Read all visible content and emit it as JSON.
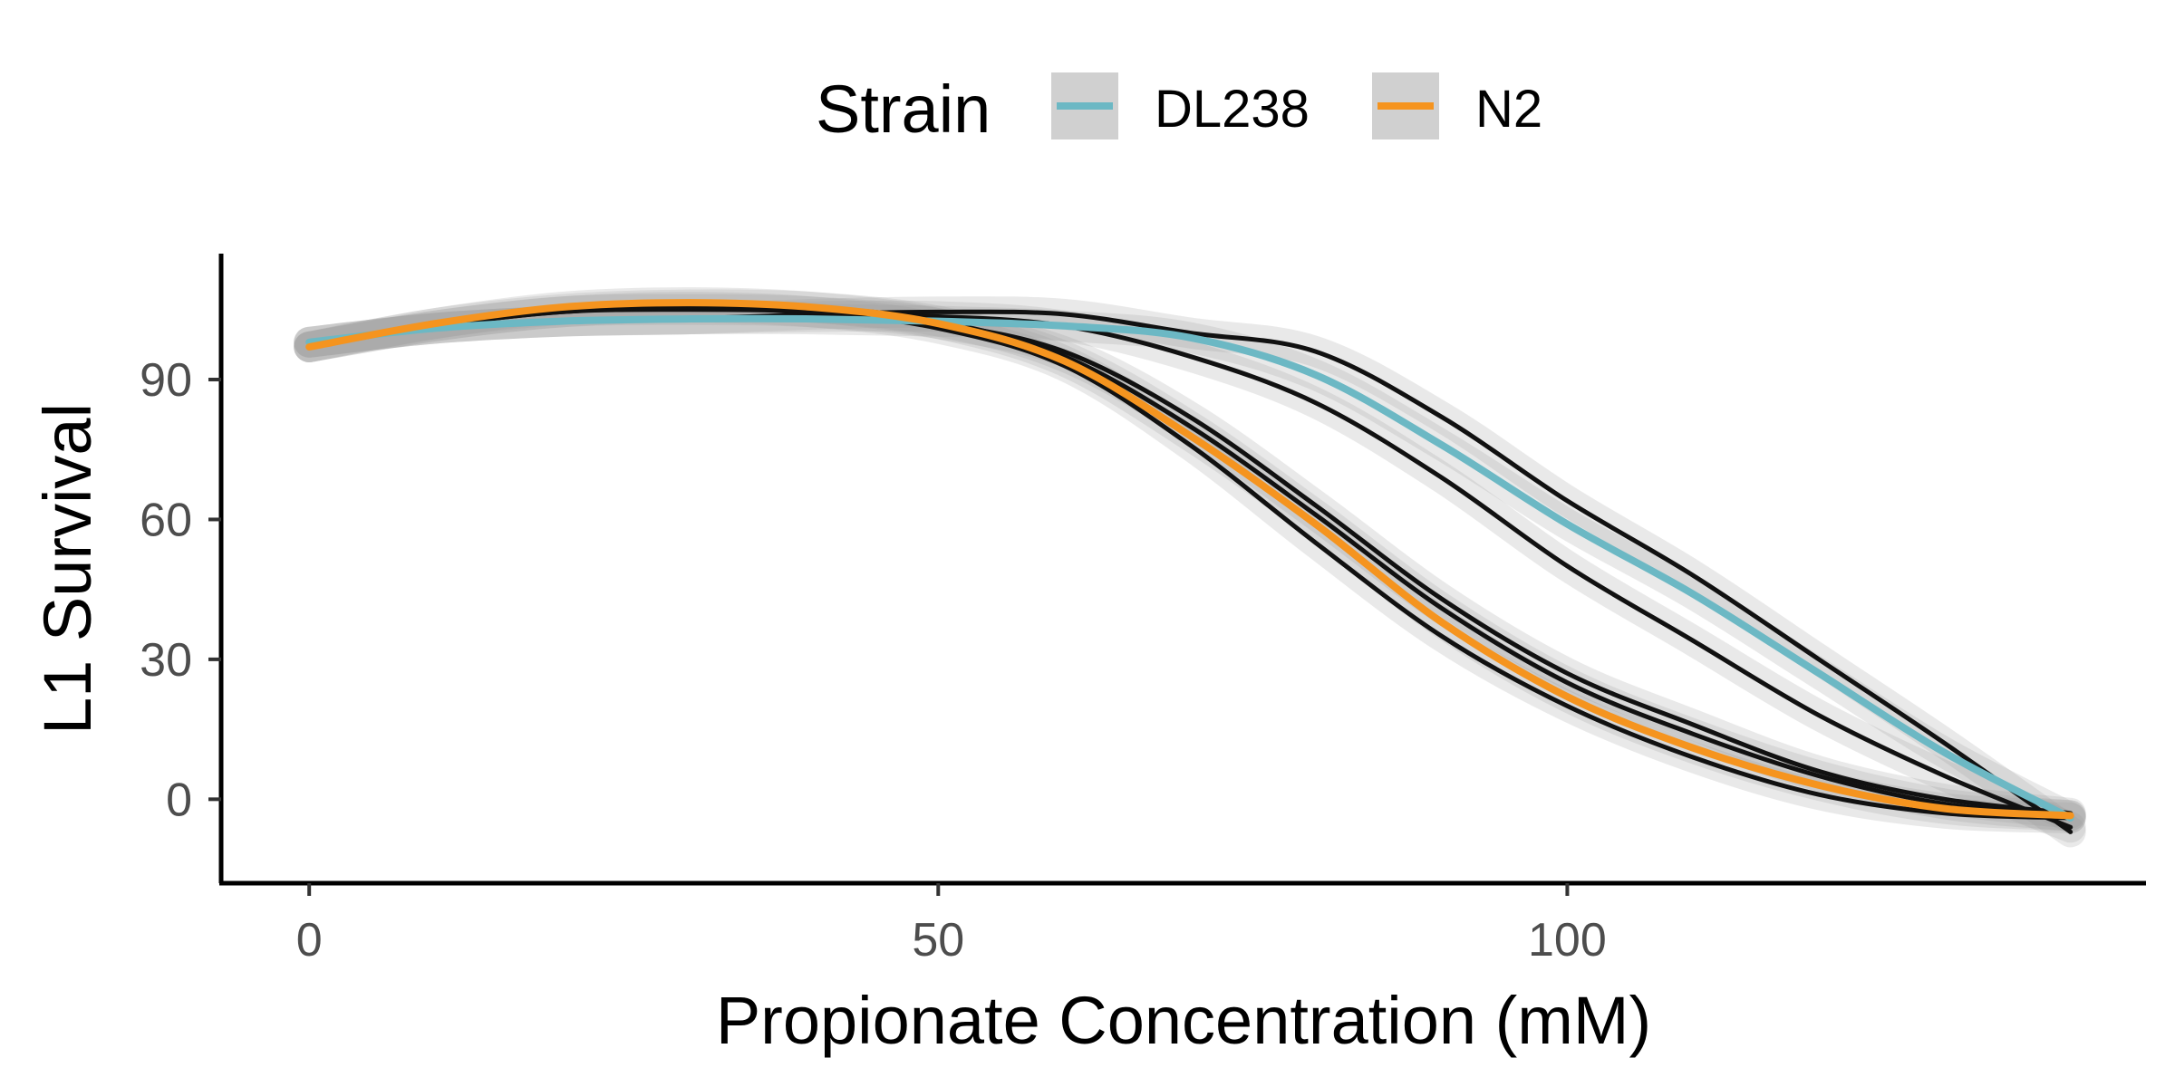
{
  "chart_data": {
    "type": "line",
    "title": "",
    "xlabel": "Propionate Concentration (mM)",
    "ylabel": "L1 Survival",
    "xlim": [
      -7,
      146
    ],
    "ylim": [
      -18,
      117
    ],
    "x_ticks": [
      0,
      50,
      100
    ],
    "y_ticks": [
      0,
      30,
      60,
      90
    ],
    "grid": false,
    "legend": {
      "title": "Strain",
      "position": "top"
    },
    "series": [
      {
        "name": "DL238",
        "color": "#6cb8c4",
        "x": [
          0,
          10,
          20,
          30,
          40,
          50,
          60,
          70,
          80,
          90,
          100,
          110,
          120,
          130,
          140
        ],
        "y": [
          98,
          101,
          102.5,
          103,
          103,
          102.5,
          101.5,
          99,
          91,
          76,
          59,
          44,
          27,
          10,
          -4
        ],
        "replicates": [
          {
            "x": [
              0,
              10,
              20,
              30,
              40,
              50,
              60,
              70,
              80,
              90,
              100,
              110,
              120,
              130,
              140
            ],
            "y": [
              98,
              101,
              102.5,
              103,
              104,
              104.5,
              104,
              100,
              96,
              82,
              64,
              48,
              30,
              12,
              -7
            ]
          },
          {
            "x": [
              0,
              10,
              20,
              30,
              40,
              50,
              60,
              70,
              80,
              90,
              100,
              110,
              120,
              130,
              140
            ],
            "y": [
              98,
              101,
              102.5,
              103,
              103.5,
              103.5,
              101.5,
              95,
              85,
              69,
              50,
              34,
              18,
              5,
              -6
            ]
          }
        ]
      },
      {
        "name": "N2",
        "color": "#f5941f",
        "x": [
          0,
          10,
          20,
          30,
          40,
          50,
          60,
          70,
          80,
          90,
          100,
          110,
          120,
          130,
          140
        ],
        "y": [
          97,
          102,
          105.5,
          106.5,
          105.5,
          102,
          94,
          78,
          59,
          38,
          22,
          11,
          3,
          -2,
          -3.5
        ],
        "replicates": [
          {
            "x": [
              0,
              10,
              20,
              30,
              40,
              50,
              60,
              70,
              80,
              90,
              100,
              110,
              120,
              130,
              140
            ],
            "y": [
              97,
              101.5,
              104.5,
              105,
              104.5,
              102,
              96,
              82,
              63,
              43,
              27,
              16,
              6,
              0,
              -3
            ]
          },
          {
            "x": [
              0,
              10,
              20,
              30,
              40,
              50,
              60,
              70,
              80,
              90,
              100,
              110,
              120,
              130,
              140
            ],
            "y": [
              97,
              101.5,
              104.5,
              105.5,
              104.5,
              101,
              93,
              76,
              55,
              35,
              20,
              9,
              1,
              -3,
              -4
            ]
          },
          {
            "x": [
              0,
              10,
              20,
              30,
              40,
              50,
              60,
              70,
              80,
              90,
              100,
              110,
              120,
              130,
              140
            ],
            "y": [
              97,
              102,
              105,
              106,
              105.5,
              102.5,
              95,
              80,
              61,
              41,
              25,
              14,
              5,
              -1,
              -3.5
            ]
          }
        ]
      }
    ]
  }
}
